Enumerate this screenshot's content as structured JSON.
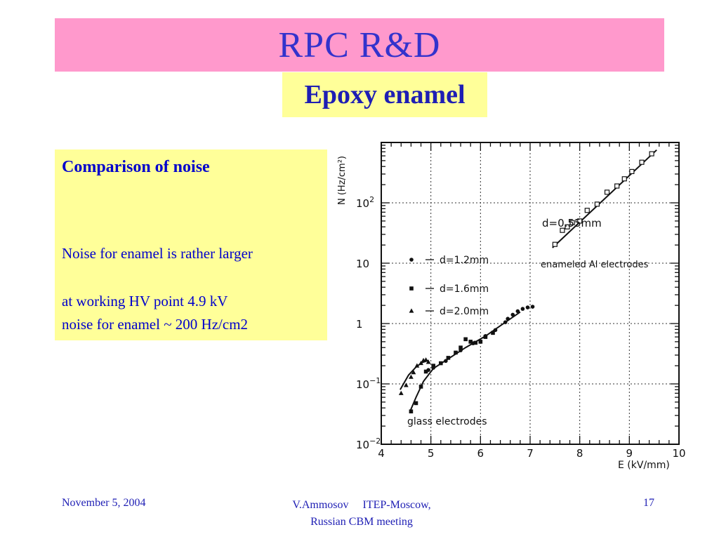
{
  "slide": {
    "title": "RPC R&D",
    "subtitle": "Epoxy enamel",
    "colors": {
      "title_band": "#ff99cc",
      "title_text": "#3333cc",
      "highlight": "#ffff99",
      "note_text": "#0000cc"
    }
  },
  "notes": {
    "heading": "Comparison of noise",
    "line1": "Noise for enamel is rather larger",
    "line2": "at working HV point 4.9 kV",
    "line3": "noise for enamel ~  200 Hz/cm2"
  },
  "footer": {
    "date": "November 5, 2004",
    "author_line1": "V.Ammosov     ITEP-Moscow,",
    "author_line2": "Russian CBM meeting",
    "page": "17"
  },
  "chart_data": {
    "type": "scatter",
    "xlabel": "E (kV/mm)",
    "ylabel": "N (Hz/cm²)",
    "xlim": [
      4,
      10
    ],
    "ylim": [
      0.01,
      1000
    ],
    "yscale": "log",
    "x_ticks": [
      "4",
      "5",
      "6",
      "7",
      "8",
      "9",
      "10"
    ],
    "y_ticks": [
      {
        "value": 0.01,
        "base": "10",
        "exp": "−2"
      },
      {
        "value": 0.1,
        "base": "10",
        "exp": "−1"
      },
      {
        "value": 1,
        "base": "1",
        "exp": ""
      },
      {
        "value": 10,
        "base": "10",
        "exp": ""
      },
      {
        "value": 100,
        "base": "10",
        "exp": "2"
      }
    ],
    "grid": true,
    "legend": [
      {
        "marker": "circle",
        "label": "d=1.2mm"
      },
      {
        "marker": "square",
        "label": "d=1.6mm"
      },
      {
        "marker": "triangle",
        "label": "d=2.0mm"
      }
    ],
    "annotations": {
      "enamel_gap": "d=0.55mm",
      "enamel_group": "enameled Al electrodes",
      "glass_group": "glass electrodes"
    },
    "series": [
      {
        "marker": "open-square",
        "points": [
          [
            7.5,
            20.5
          ],
          [
            7.65,
            35
          ],
          [
            7.75,
            40
          ],
          [
            7.85,
            47
          ],
          [
            8.0,
            50
          ],
          [
            8.15,
            75
          ],
          [
            8.35,
            95
          ],
          [
            8.55,
            150
          ],
          [
            8.75,
            190
          ],
          [
            8.9,
            250
          ],
          [
            9.05,
            330
          ],
          [
            9.25,
            470
          ],
          [
            9.45,
            650
          ]
        ],
        "fit": [
          [
            7.45,
            18
          ],
          [
            9.55,
            750
          ]
        ]
      },
      {
        "marker": "triangle",
        "points": [
          [
            4.4,
            0.07
          ],
          [
            4.5,
            0.095
          ],
          [
            4.6,
            0.13
          ],
          [
            4.65,
            0.155
          ],
          [
            4.72,
            0.2
          ],
          [
            4.8,
            0.22
          ],
          [
            4.85,
            0.245
          ],
          [
            4.9,
            0.25
          ],
          [
            4.95,
            0.23
          ]
        ],
        "fit": [
          [
            4.38,
            0.08
          ],
          [
            4.55,
            0.14
          ],
          [
            4.7,
            0.19
          ],
          [
            4.82,
            0.225
          ],
          [
            4.95,
            0.245
          ]
        ]
      },
      {
        "marker": "square",
        "points": [
          [
            4.6,
            0.035
          ],
          [
            4.7,
            0.048
          ],
          [
            4.8,
            0.09
          ],
          [
            4.9,
            0.16
          ],
          [
            5.05,
            0.2
          ],
          [
            5.2,
            0.22
          ],
          [
            5.35,
            0.27
          ],
          [
            5.5,
            0.33
          ],
          [
            5.6,
            0.4
          ],
          [
            5.7,
            0.55
          ],
          [
            5.8,
            0.5
          ],
          [
            5.9,
            0.48
          ],
          [
            6.0,
            0.5
          ],
          [
            6.1,
            0.6
          ],
          [
            6.25,
            0.7
          ]
        ],
        "fit": [
          [
            4.58,
            0.035
          ],
          [
            4.7,
            0.06
          ],
          [
            4.85,
            0.11
          ],
          [
            5.05,
            0.18
          ],
          [
            5.35,
            0.26
          ],
          [
            5.7,
            0.4
          ],
          [
            6.1,
            0.62
          ],
          [
            6.5,
            1.05
          ],
          [
            6.8,
            1.55
          ]
        ]
      },
      {
        "marker": "circle",
        "points": [
          [
            4.95,
            0.17
          ],
          [
            5.05,
            0.185
          ],
          [
            5.3,
            0.24
          ],
          [
            5.6,
            0.36
          ],
          [
            5.85,
            0.47
          ],
          [
            6.1,
            0.62
          ],
          [
            6.3,
            0.78
          ],
          [
            6.5,
            1.05
          ],
          [
            6.55,
            1.2
          ],
          [
            6.65,
            1.4
          ],
          [
            6.75,
            1.6
          ],
          [
            6.85,
            1.75
          ],
          [
            6.95,
            1.85
          ],
          [
            7.05,
            1.9
          ]
        ],
        "fit": []
      }
    ]
  }
}
